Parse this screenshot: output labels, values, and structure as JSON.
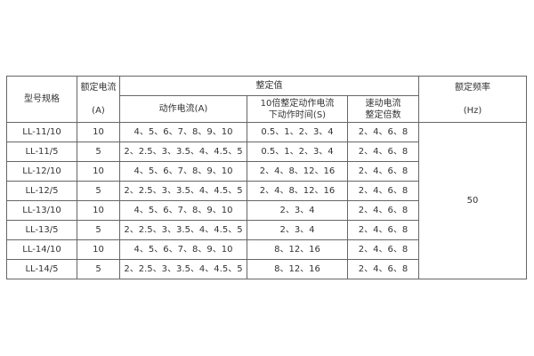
{
  "header": {
    "model": "型号规格",
    "rated_current": "额定电流",
    "rated_current_unit": "(A)",
    "setting_value": "整定值",
    "action_current": "动作电流(A)",
    "action_time_line1": "10倍整定动作电流",
    "action_time_line2": "下动作时间(S)",
    "quick_line1": "速动电流",
    "quick_line2": "整定倍数",
    "rated_freq": "额定频率",
    "rated_freq_unit": "(Hz)"
  },
  "frequency": "50",
  "rows": [
    {
      "model": "LL-11/10",
      "current": "10",
      "action_current": "4、5、6、7、8、9、10",
      "action_time": "0.5、1、2、3、4",
      "quick": "2、4、6、8"
    },
    {
      "model": "LL-11/5",
      "current": "5",
      "action_current": "2、2.5、3、3.5、4、4.5、5",
      "action_time": "0.5、1、2、3、4",
      "quick": "2、4、6、8"
    },
    {
      "model": "LL-12/10",
      "current": "10",
      "action_current": "4、5、6、7、8、9、10",
      "action_time": "2、4、8、12、16",
      "quick": "2、4、6、8"
    },
    {
      "model": "LL-12/5",
      "current": "5",
      "action_current": "2、2.5、3、3.5、4、4.5、5",
      "action_time": "2、4、8、12、16",
      "quick": "2、4、6、8"
    },
    {
      "model": "LL-13/10",
      "current": "10",
      "action_current": "4、5、6、7、8、9、10",
      "action_time": "2、3、4",
      "quick": "2、4、6、8"
    },
    {
      "model": "LL-13/5",
      "current": "5",
      "action_current": "2、2.5、3、3.5、4、4.5、5",
      "action_time": "2、3、4",
      "quick": "2、4、6、8"
    },
    {
      "model": "LL-14/10",
      "current": "10",
      "action_current": "4、5、6、7、8、9、10",
      "action_time": "8、12、16",
      "quick": "2、4、6、8"
    },
    {
      "model": "LL-14/5",
      "current": "5",
      "action_current": "2、2.5、3、3.5、4、4.5、5",
      "action_time": "8、12、16",
      "quick": "2、4、6、8"
    }
  ]
}
